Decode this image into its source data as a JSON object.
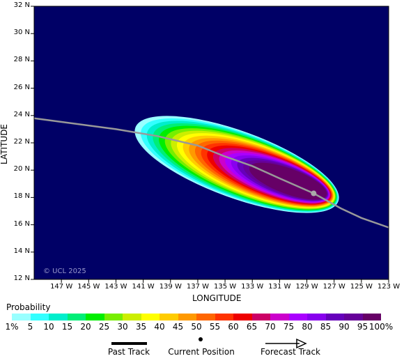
{
  "map": {
    "background_color": "#000066",
    "track_color": "#999999",
    "watermark": "© UCL 2025",
    "x_axis_title": "LONGITUDE",
    "y_axis_title": "LATITUDE",
    "lon_ticks": [
      "147 W",
      "145 W",
      "143 W",
      "141 W",
      "139 W",
      "137 W",
      "135 W",
      "133 W",
      "131 W",
      "129 W",
      "127 W",
      "125 W",
      "123 W"
    ],
    "lat_ticks": [
      "32 N",
      "30 N",
      "28 N",
      "26 N",
      "24 N",
      "22 N",
      "20 N",
      "18 N",
      "16 N",
      "14 N",
      "12 N"
    ],
    "current_position": {
      "lon": -128.5,
      "lat": 18.3
    },
    "track": [
      {
        "lon": -149.0,
        "lat": 23.8
      },
      {
        "lon": -143.0,
        "lat": 23.0
      },
      {
        "lon": -140.0,
        "lat": 22.5
      },
      {
        "lon": -137.0,
        "lat": 21.8
      },
      {
        "lon": -135.0,
        "lat": 21.0
      },
      {
        "lon": -133.0,
        "lat": 20.3
      },
      {
        "lon": -131.0,
        "lat": 19.4
      },
      {
        "lon": -128.5,
        "lat": 18.3
      },
      {
        "lon": -126.5,
        "lat": 17.2
      },
      {
        "lon": -125.0,
        "lat": 16.5
      },
      {
        "lon": -123.0,
        "lat": 15.8
      }
    ]
  },
  "legend": {
    "title": "Probability",
    "colors": [
      "#99ffff",
      "#33ffff",
      "#00eecc",
      "#00ee77",
      "#00ee00",
      "#77ee00",
      "#ccee00",
      "#ffff00",
      "#ffcc00",
      "#ff9900",
      "#ff6600",
      "#ff3300",
      "#ee0000",
      "#cc0066",
      "#cc00cc",
      "#aa00ff",
      "#8800ee",
      "#6600bb",
      "#660099",
      "#660066"
    ],
    "labels": [
      "1%",
      "5",
      "10",
      "15",
      "20",
      "25",
      "30",
      "35",
      "40",
      "45",
      "50",
      "55",
      "60",
      "65",
      "70",
      "75",
      "80",
      "85",
      "90",
      "95",
      "100%"
    ],
    "past_track_label": "Past Track",
    "current_position_label": "Current Position",
    "forecast_track_label": "Forecast Track"
  }
}
